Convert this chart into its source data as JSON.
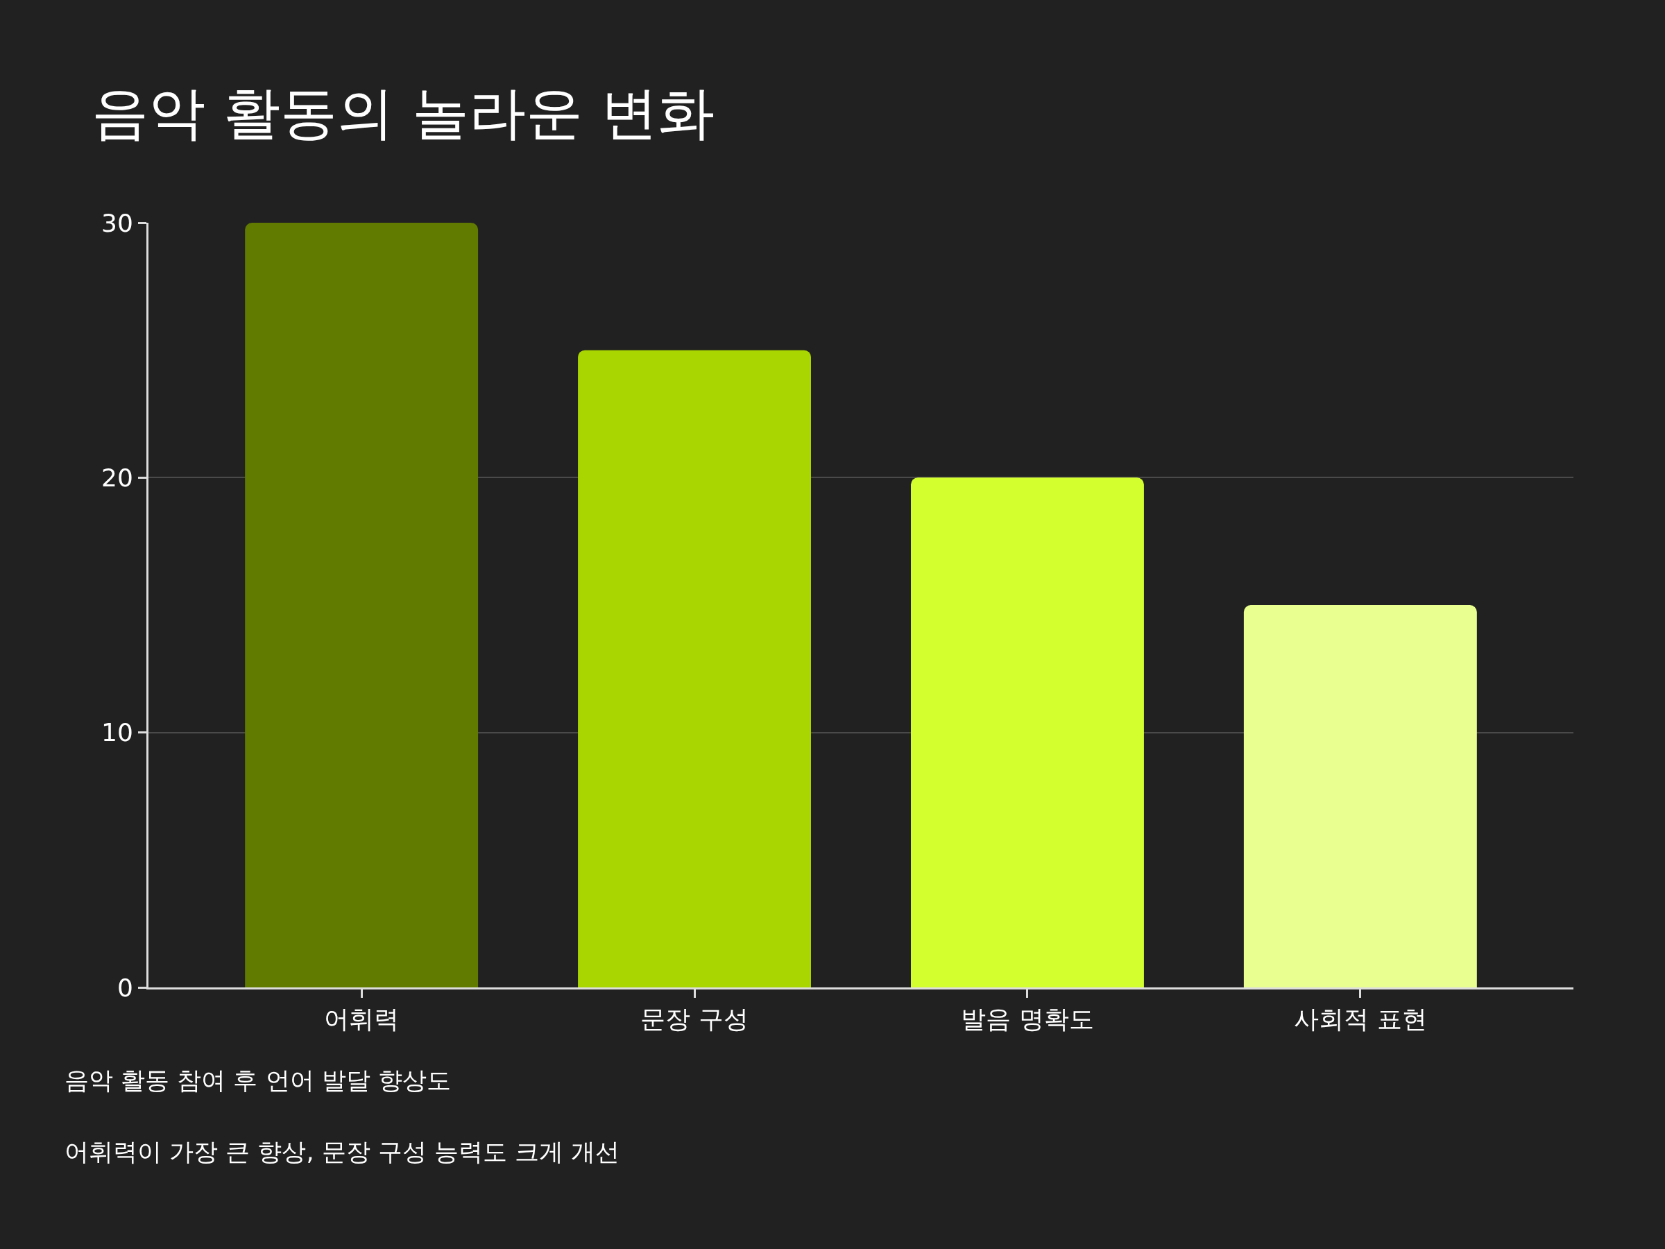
{
  "chart_data": {
    "type": "bar",
    "title": "음악 활동의 놀라운 변화",
    "categories": [
      "어휘력",
      "문장 구성",
      "발음 명확도",
      "사회적 표현"
    ],
    "values": [
      30,
      25,
      20,
      15
    ],
    "colors": [
      "#617a00",
      "#a9d600",
      "#d4ff2f",
      "#e9ff8f"
    ],
    "ylim": [
      0,
      30
    ],
    "yticks": [
      0,
      10,
      20,
      30
    ],
    "grid": "y",
    "annotations": [
      "음악 활동 참여 후 언어 발달 향상도",
      "어휘력이 가장 큰 향상, 문장 구성 능력도 크게 개선"
    ]
  }
}
